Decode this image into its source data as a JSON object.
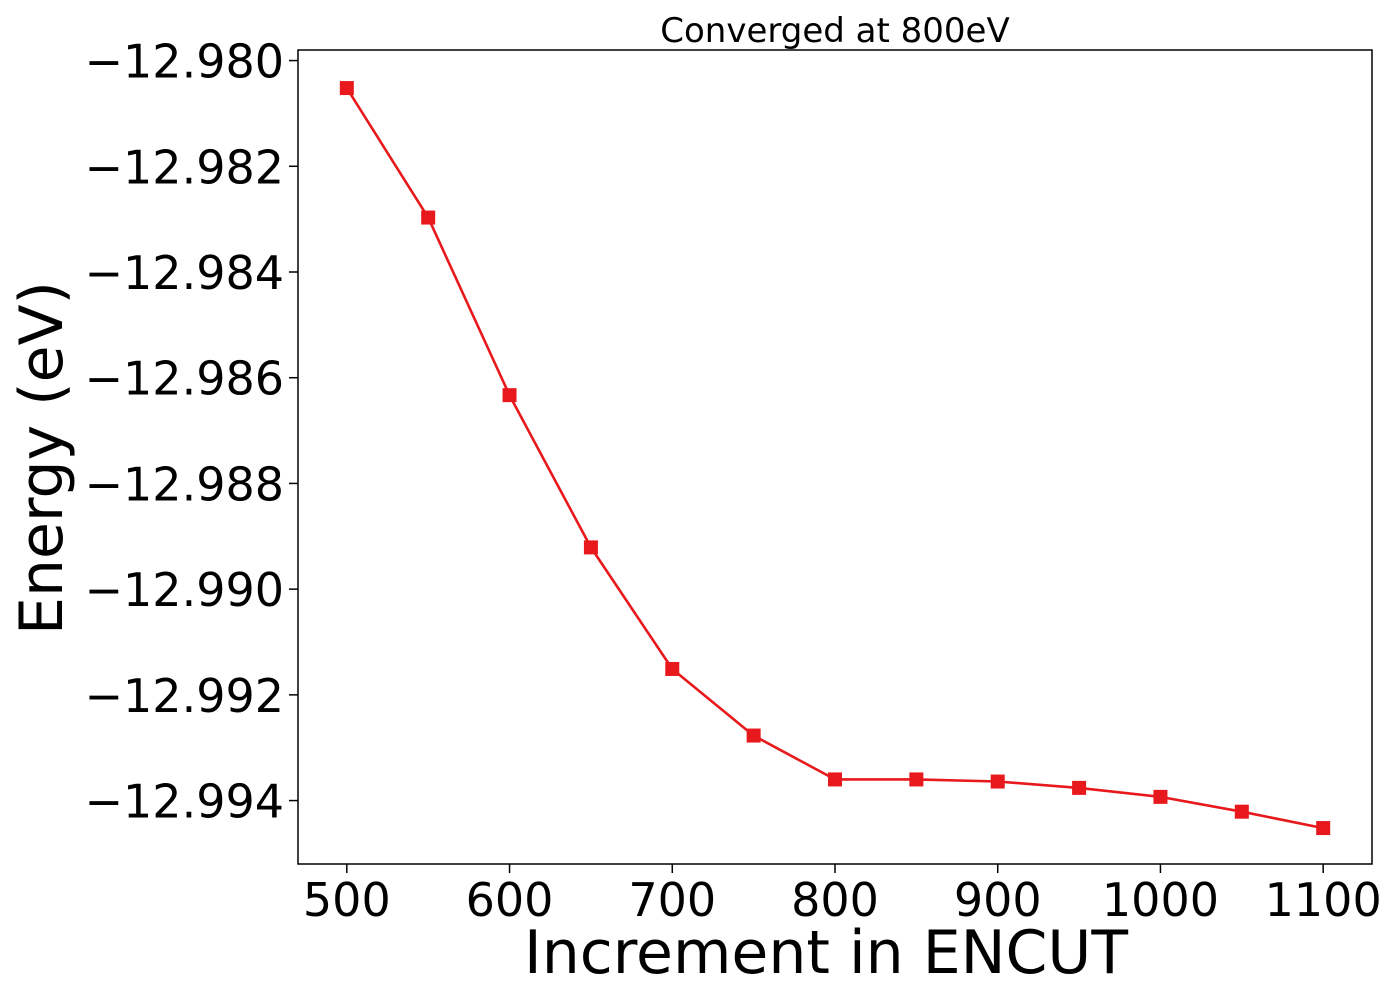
{
  "chart_data": {
    "type": "line",
    "title": "Converged at 800eV",
    "xlabel": "Increment in ENCUT",
    "ylabel": "Energy (eV)",
    "xlim": [
      470,
      1130
    ],
    "ylim": [
      -12.9952,
      -12.9798
    ],
    "xticks": [
      500,
      600,
      700,
      800,
      900,
      1000,
      1100
    ],
    "xtick_labels": [
      "500",
      "600",
      "700",
      "800",
      "900",
      "1000",
      "1100"
    ],
    "yticks": [
      -12.98,
      -12.982,
      -12.984,
      -12.986,
      -12.988,
      -12.99,
      -12.992,
      -12.994
    ],
    "ytick_labels": [
      "−12.980",
      "−12.982",
      "−12.984",
      "−12.986",
      "−12.988",
      "−12.990",
      "−12.992",
      "−12.994"
    ],
    "grid": false,
    "legend": "none",
    "series": [
      {
        "color": "#e8191c",
        "marker": "square",
        "x": [
          500,
          550,
          600,
          650,
          700,
          750,
          800,
          850,
          900,
          950,
          1000,
          1050,
          1100
        ],
        "y": [
          -12.98052,
          -12.98297,
          -12.98633,
          -12.98921,
          -12.99151,
          -12.99277,
          -12.9936,
          -12.9936,
          -12.99364,
          -12.99376,
          -12.99393,
          -12.99421,
          -12.99452
        ]
      }
    ]
  }
}
